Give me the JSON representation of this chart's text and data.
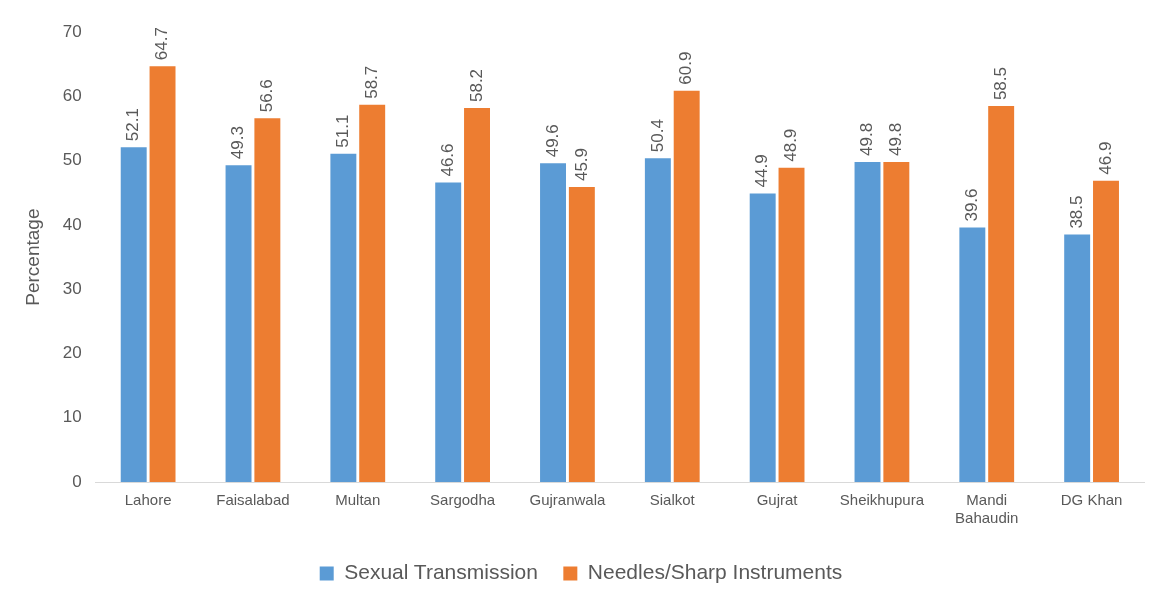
{
  "chart_data": {
    "type": "bar",
    "ylabel": "Percentage",
    "categories": [
      "Lahore",
      "Faisalabad",
      "Multan",
      "Sargodha",
      "Gujranwala",
      "Sialkot",
      "Gujrat",
      "Sheikhupura",
      "Mandi Bahaudin",
      "DG Khan"
    ],
    "series": [
      {
        "name": "Sexual Transmission",
        "color": "#5b9bd5",
        "values": [
          52.1,
          49.3,
          51.1,
          46.6,
          49.6,
          50.4,
          44.9,
          49.8,
          39.6,
          38.5
        ]
      },
      {
        "name": "Needles/Sharp Instruments",
        "color": "#ed7d31",
        "values": [
          64.7,
          56.6,
          58.7,
          58.2,
          45.9,
          60.9,
          48.9,
          49.8,
          58.5,
          46.9
        ]
      }
    ],
    "ylim": [
      0,
      70
    ],
    "yticks": [
      0,
      10,
      20,
      30,
      40,
      50,
      60,
      70
    ],
    "grid": false,
    "legend": "bottom",
    "data_labels": true
  }
}
